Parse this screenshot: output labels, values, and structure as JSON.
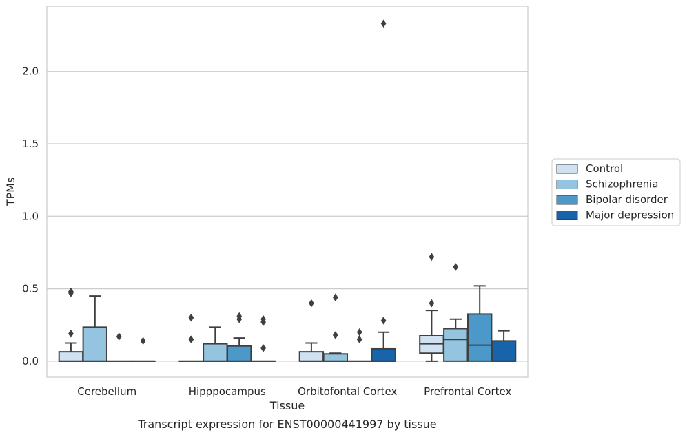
{
  "chart_data": {
    "type": "box",
    "title": "",
    "caption": "Transcript expression for ENST00000441997 by tissue",
    "xlabel": "Tissue",
    "ylabel": "TPMs",
    "ylim": [
      -0.11,
      2.45
    ],
    "yticks": [
      "0.0",
      "0.5",
      "1.0",
      "1.5",
      "2.0"
    ],
    "ytick_values": [
      0.0,
      0.5,
      1.0,
      1.5,
      2.0
    ],
    "grid": true,
    "legend_placement": "right, outside",
    "categories": [
      "Cerebellum",
      "Hipppocampus",
      "Orbitofontal Cortex",
      "Prefrontal Cortex"
    ],
    "colors": {
      "Control": "#d0e1f2",
      "Schizophrenia": "#94c4df",
      "Bipolar disorder": "#4b98c9",
      "Major depression": "#1764ab"
    },
    "series": [
      {
        "name": "Control",
        "boxes": [
          {
            "q1": 0.0,
            "median": 0.0,
            "q3": 0.065,
            "whisker_low": 0.0,
            "whisker_high": 0.125,
            "outliers": [
              0.19,
              0.47,
              0.48
            ]
          },
          {
            "q1": 0.0,
            "median": 0.0,
            "q3": 0.0,
            "whisker_low": 0.0,
            "whisker_high": 0.0,
            "outliers": [
              0.15,
              0.3
            ]
          },
          {
            "q1": 0.0,
            "median": 0.0,
            "q3": 0.065,
            "whisker_low": 0.0,
            "whisker_high": 0.125,
            "outliers": [
              0.4
            ]
          },
          {
            "q1": 0.055,
            "median": 0.12,
            "q3": 0.175,
            "whisker_low": 0.0,
            "whisker_high": 0.35,
            "outliers": [
              0.4,
              0.72
            ]
          }
        ]
      },
      {
        "name": "Schizophrenia",
        "boxes": [
          {
            "q1": 0.0,
            "median": 0.0,
            "q3": 0.235,
            "whisker_low": 0.0,
            "whisker_high": 0.45,
            "outliers": []
          },
          {
            "q1": 0.0,
            "median": 0.0,
            "q3": 0.12,
            "whisker_low": 0.0,
            "whisker_high": 0.235,
            "outliers": []
          },
          {
            "q1": 0.0,
            "median": 0.0,
            "q3": 0.05,
            "whisker_low": 0.0,
            "whisker_high": 0.055,
            "outliers": [
              0.18,
              0.44
            ]
          },
          {
            "q1": 0.0,
            "median": 0.15,
            "q3": 0.225,
            "whisker_low": 0.0,
            "whisker_high": 0.29,
            "outliers": [
              0.65
            ]
          }
        ]
      },
      {
        "name": "Bipolar disorder",
        "boxes": [
          {
            "q1": 0.0,
            "median": 0.0,
            "q3": 0.0,
            "whisker_low": 0.0,
            "whisker_high": 0.0,
            "outliers": [
              0.17
            ]
          },
          {
            "q1": 0.0,
            "median": 0.0,
            "q3": 0.105,
            "whisker_low": 0.0,
            "whisker_high": 0.16,
            "outliers": [
              0.29,
              0.31
            ]
          },
          {
            "q1": 0.0,
            "median": 0.0,
            "q3": 0.0,
            "whisker_low": 0.0,
            "whisker_high": 0.0,
            "outliers": [
              0.15,
              0.2
            ]
          },
          {
            "q1": 0.0,
            "median": 0.11,
            "q3": 0.325,
            "whisker_low": 0.0,
            "whisker_high": 0.52,
            "outliers": []
          }
        ]
      },
      {
        "name": "Major depression",
        "boxes": [
          {
            "q1": 0.0,
            "median": 0.0,
            "q3": 0.0,
            "whisker_low": 0.0,
            "whisker_high": 0.0,
            "outliers": [
              0.14
            ]
          },
          {
            "q1": 0.0,
            "median": 0.0,
            "q3": 0.0,
            "whisker_low": 0.0,
            "whisker_high": 0.0,
            "outliers": [
              0.09,
              0.27,
              0.29
            ]
          },
          {
            "q1": 0.0,
            "median": 0.0,
            "q3": 0.085,
            "whisker_low": 0.0,
            "whisker_high": 0.2,
            "outliers": [
              0.28,
              2.33
            ]
          },
          {
            "q1": 0.0,
            "median": 0.0,
            "q3": 0.14,
            "whisker_low": 0.0,
            "whisker_high": 0.21,
            "outliers": []
          }
        ]
      }
    ]
  }
}
